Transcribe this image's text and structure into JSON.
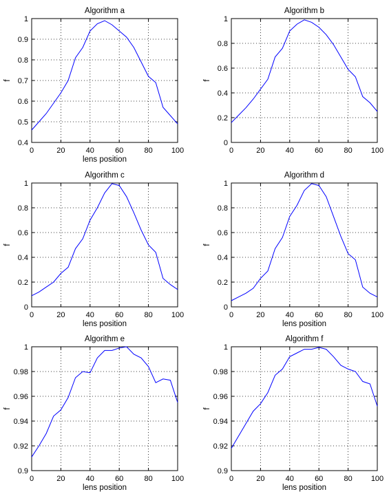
{
  "figure": {
    "background": "#ffffff",
    "line_color": "#0000ff",
    "grid_style": "dotted"
  },
  "chart_data": [
    {
      "type": "line",
      "title": "Algorithm a",
      "xlabel": "lens position",
      "ylabel": "f",
      "xlim": [
        0,
        100
      ],
      "ylim": [
        0.4,
        1
      ],
      "xticks": [
        0,
        20,
        40,
        60,
        80,
        100
      ],
      "yticks": [
        0.4,
        0.5,
        0.6,
        0.7,
        0.8,
        0.9,
        1
      ],
      "ytick_labels": [
        "0.4",
        "0.5",
        "0.6",
        "0.7",
        "0.8",
        "0.9",
        "1"
      ],
      "grid": true,
      "x": [
        0,
        5,
        10,
        15,
        20,
        25,
        30,
        35,
        40,
        45,
        50,
        55,
        60,
        65,
        70,
        75,
        80,
        85,
        90,
        95,
        100
      ],
      "y": [
        0.46,
        0.5,
        0.54,
        0.59,
        0.64,
        0.7,
        0.81,
        0.86,
        0.94,
        0.975,
        0.99,
        0.97,
        0.94,
        0.91,
        0.86,
        0.79,
        0.72,
        0.69,
        0.57,
        0.53,
        0.49
      ]
    },
    {
      "type": "line",
      "title": "Algorithm b",
      "xlabel": "",
      "ylabel": "f",
      "xlim": [
        0,
        100
      ],
      "ylim": [
        0,
        1
      ],
      "xticks": [
        0,
        20,
        40,
        60,
        80,
        100
      ],
      "yticks": [
        0,
        0.2,
        0.4,
        0.6,
        0.8,
        1
      ],
      "ytick_labels": [
        "0",
        "0.2",
        "0.4",
        "0.6",
        "0.8",
        "1"
      ],
      "grid": true,
      "x": [
        0,
        5,
        10,
        15,
        20,
        25,
        30,
        35,
        40,
        45,
        50,
        55,
        60,
        65,
        70,
        75,
        80,
        85,
        90,
        95,
        100
      ],
      "y": [
        0.16,
        0.22,
        0.28,
        0.35,
        0.43,
        0.51,
        0.69,
        0.76,
        0.9,
        0.955,
        0.99,
        0.97,
        0.93,
        0.87,
        0.79,
        0.69,
        0.59,
        0.53,
        0.37,
        0.32,
        0.25
      ]
    },
    {
      "type": "line",
      "title": "Algorithm c",
      "xlabel": "lens position",
      "ylabel": "f",
      "xlim": [
        0,
        100
      ],
      "ylim": [
        0,
        1
      ],
      "xticks": [
        0,
        20,
        40,
        60,
        80,
        100
      ],
      "yticks": [
        0,
        0.2,
        0.4,
        0.6,
        0.8,
        1
      ],
      "ytick_labels": [
        "0",
        "0.2",
        "0.4",
        "0.6",
        "0.8",
        "1"
      ],
      "grid": true,
      "x": [
        0,
        5,
        10,
        15,
        20,
        25,
        30,
        35,
        40,
        45,
        50,
        55,
        60,
        65,
        70,
        75,
        80,
        85,
        90,
        95,
        100
      ],
      "y": [
        0.09,
        0.12,
        0.16,
        0.2,
        0.27,
        0.32,
        0.47,
        0.55,
        0.7,
        0.8,
        0.92,
        0.995,
        0.98,
        0.89,
        0.76,
        0.62,
        0.5,
        0.44,
        0.23,
        0.18,
        0.14
      ]
    },
    {
      "type": "line",
      "title": "Algorithm d",
      "xlabel": "lens position",
      "ylabel": "f",
      "xlim": [
        0,
        100
      ],
      "ylim": [
        0,
        1
      ],
      "xticks": [
        0,
        20,
        40,
        60,
        80,
        100
      ],
      "yticks": [
        0,
        0.2,
        0.4,
        0.6,
        0.8,
        1
      ],
      "ytick_labels": [
        "0",
        "0.2",
        "0.4",
        "0.6",
        "0.8",
        "1"
      ],
      "grid": true,
      "x": [
        0,
        5,
        10,
        15,
        20,
        25,
        30,
        35,
        40,
        45,
        50,
        55,
        60,
        65,
        70,
        75,
        80,
        85,
        90,
        95,
        100
      ],
      "y": [
        0.05,
        0.08,
        0.11,
        0.15,
        0.23,
        0.29,
        0.47,
        0.56,
        0.73,
        0.82,
        0.94,
        0.995,
        0.98,
        0.89,
        0.73,
        0.57,
        0.43,
        0.38,
        0.16,
        0.11,
        0.08
      ]
    },
    {
      "type": "line",
      "title": "Algorithm e",
      "xlabel": "lens position",
      "ylabel": "f",
      "xlim": [
        0,
        100
      ],
      "ylim": [
        0.9,
        1
      ],
      "xticks": [
        0,
        20,
        40,
        60,
        80,
        100
      ],
      "yticks": [
        0.9,
        0.92,
        0.94,
        0.96,
        0.98,
        1
      ],
      "ytick_labels": [
        "0.9",
        "0.92",
        "0.94",
        "0.96",
        "0.98",
        "1"
      ],
      "grid": true,
      "x": [
        0,
        5,
        10,
        15,
        20,
        25,
        30,
        35,
        40,
        45,
        50,
        55,
        60,
        65,
        70,
        75,
        80,
        85,
        90,
        95,
        100
      ],
      "y": [
        0.911,
        0.92,
        0.93,
        0.944,
        0.949,
        0.959,
        0.975,
        0.98,
        0.979,
        0.991,
        0.997,
        0.997,
        0.999,
        1.0,
        0.994,
        0.991,
        0.984,
        0.971,
        0.974,
        0.973,
        0.955
      ]
    },
    {
      "type": "line",
      "title": "Algorithm f",
      "xlabel": "lens position",
      "ylabel": "f",
      "xlim": [
        0,
        100
      ],
      "ylim": [
        0.9,
        1
      ],
      "xticks": [
        0,
        20,
        40,
        60,
        80,
        100
      ],
      "yticks": [
        0.9,
        0.92,
        0.94,
        0.96,
        0.98,
        1
      ],
      "ytick_labels": [
        "0.9",
        "0.92",
        "0.94",
        "0.96",
        "0.98",
        "1"
      ],
      "grid": true,
      "x": [
        0,
        5,
        10,
        15,
        20,
        25,
        30,
        35,
        40,
        45,
        50,
        55,
        60,
        65,
        70,
        75,
        80,
        85,
        90,
        95,
        100
      ],
      "y": [
        0.918,
        0.928,
        0.938,
        0.948,
        0.954,
        0.963,
        0.977,
        0.982,
        0.992,
        0.995,
        0.998,
        0.998,
        0.9995,
        0.998,
        0.992,
        0.985,
        0.982,
        0.98,
        0.972,
        0.97,
        0.952
      ]
    }
  ]
}
